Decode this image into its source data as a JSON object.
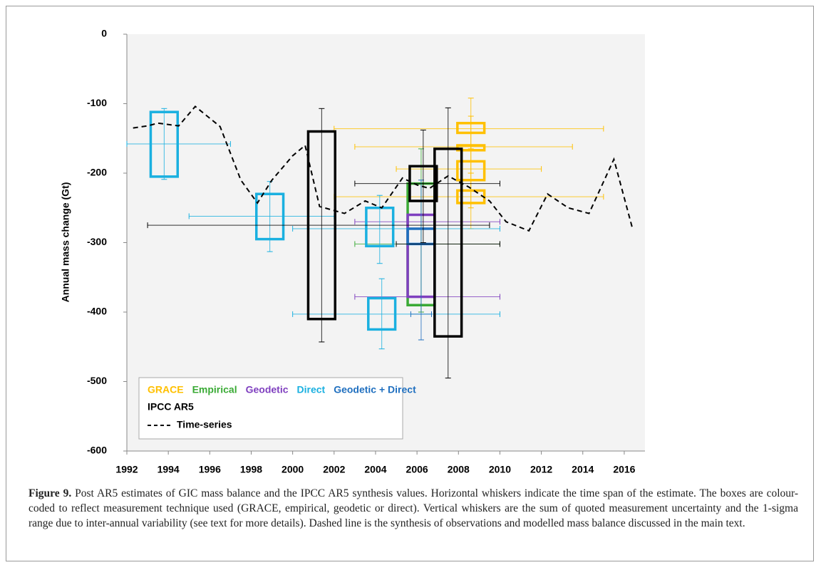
{
  "chart_data": {
    "type": "box",
    "y_label": "Annual mass change (Gt)",
    "xlim": [
      1992,
      2017
    ],
    "ylim": [
      -600,
      0
    ],
    "xticks": [
      1992,
      1994,
      1996,
      1998,
      2000,
      2002,
      2004,
      2006,
      2008,
      2010,
      2012,
      2014,
      2016
    ],
    "yticks": [
      0,
      -100,
      -200,
      -300,
      -400,
      -500,
      -600
    ],
    "series": [
      {
        "name": "GRACE",
        "color": "#ffc000",
        "boxes": [
          {
            "x": 2008.6,
            "box": [
              -142,
              -128
            ],
            "whisker": [
              -165,
              -92
            ],
            "span": [
              2002,
              2015
            ],
            "span_y": -136
          },
          {
            "x": 2008.6,
            "box": [
              -167,
              -160
            ],
            "whisker": [
              -200,
              -118
            ],
            "span": [
              2003,
              2013.5
            ],
            "span_y": -162
          },
          {
            "x": 2008.6,
            "box": [
              -210,
              -183
            ],
            "whisker": [
              -250,
              -160
            ],
            "span": [
              2005,
              2012
            ],
            "span_y": -194
          },
          {
            "x": 2008.6,
            "box": [
              -243,
              -225
            ],
            "whisker": [
              -280,
              -200
            ],
            "span": [
              2002,
              2015
            ],
            "span_y": -234
          }
        ]
      },
      {
        "name": "Empirical",
        "color": "#3aaa35",
        "boxes": [
          {
            "x": 2006.2,
            "box": [
              -390,
              -215
            ],
            "whisker": [
              -400,
              -165
            ],
            "span": [
              2003,
              2010
            ],
            "span_y": -302
          }
        ]
      },
      {
        "name": "Geodetic",
        "color": "#7f3fbf",
        "boxes": [
          {
            "x": 2006.2,
            "box": [
              -378,
              -260
            ],
            "span": [
              2003,
              2010
            ],
            "span_y": -270
          },
          {
            "x": 2006.2,
            "span": [
              2003,
              2010
            ],
            "span_y": -378
          }
        ]
      },
      {
        "name": "Direct",
        "color": "#1ab0e0",
        "boxes": [
          {
            "x": 1993.8,
            "box": [
              -205,
              -112
            ],
            "whisker": [
              -209,
              -107
            ],
            "span": [
              1992,
              1997
            ],
            "span_y": -158
          },
          {
            "x": 1998.9,
            "box": [
              -295,
              -230
            ],
            "whisker": [
              -313,
              -212
            ],
            "span": [
              1995,
              2002
            ],
            "span_y": -262
          },
          {
            "x": 2004.2,
            "box": [
              -305,
              -250
            ],
            "whisker": [
              -330,
              -232
            ],
            "span": [
              2000,
              2010
            ],
            "span_y": -280
          },
          {
            "x": 2004.3,
            "box": [
              -425,
              -380
            ],
            "whisker": [
              -453,
              -352
            ],
            "span": [
              2000,
              2010
            ],
            "span_y": -403
          }
        ]
      },
      {
        "name": "Geodetic + Direct",
        "color": "#1f6fbf",
        "boxes": [
          {
            "x": 2006.2,
            "box": [
              -302,
              -280
            ],
            "whisker": [
              -440,
              -210
            ],
            "span": [
              2005.7,
              2006.7
            ],
            "span_y": -403
          }
        ]
      },
      {
        "name": "IPCC AR5",
        "color": "#000000",
        "boxes": [
          {
            "x": 2001.4,
            "box": [
              -410,
              -140
            ],
            "whisker": [
              -443,
              -107
            ],
            "span": [
              1993,
              2009.5
            ],
            "span_y": -275
          },
          {
            "x": 2006.3,
            "box": [
              -240,
              -190
            ],
            "whisker": [
              -300,
              -138
            ],
            "span": [
              2003,
              2010
            ],
            "span_y": -215
          },
          {
            "x": 2007.5,
            "box": [
              -435,
              -165
            ],
            "whisker": [
              -495,
              -106
            ],
            "span": [
              2005,
              2010
            ],
            "span_y": -302
          }
        ]
      }
    ],
    "line": {
      "name": "Time-series",
      "color": "#000000",
      "x": [
        1992.3,
        1993,
        1993.5,
        1994,
        1994.5,
        1995.3,
        1996.5,
        1997.5,
        1998.3,
        1999,
        2000,
        2000.6,
        2001.3,
        2002.5,
        2003.5,
        2004.3,
        2005.3,
        2006,
        2006.6,
        2007.5,
        2008.5,
        2009.5,
        2010.3,
        2011.4,
        2012.3,
        2013.3,
        2014.3,
        2015.5,
        2016.4
      ],
      "values": [
        -135,
        -132,
        -128,
        -130,
        -132,
        -104,
        -133,
        -210,
        -243,
        -210,
        -175,
        -160,
        -248,
        -258,
        -240,
        -250,
        -207,
        -217,
        -222,
        -204,
        -220,
        -240,
        -270,
        -283,
        -230,
        -250,
        -258,
        -180,
        -280
      ]
    }
  },
  "caption": {
    "label": "Figure 9.",
    "text": "Post AR5 estimates of GIC mass balance and the IPCC AR5 synthesis values. Horizontal whiskers indicate the time span of the estimate. The boxes are colour-coded to reflect measurement technique used (GRACE, empirical, geodetic or direct). Vertical whiskers are the sum of quoted measurement uncertainty and the 1-sigma range due to inter-annual variability (see text for more details). Dashed line is the synthesis of observations and modelled mass balance discussed in the main text."
  }
}
